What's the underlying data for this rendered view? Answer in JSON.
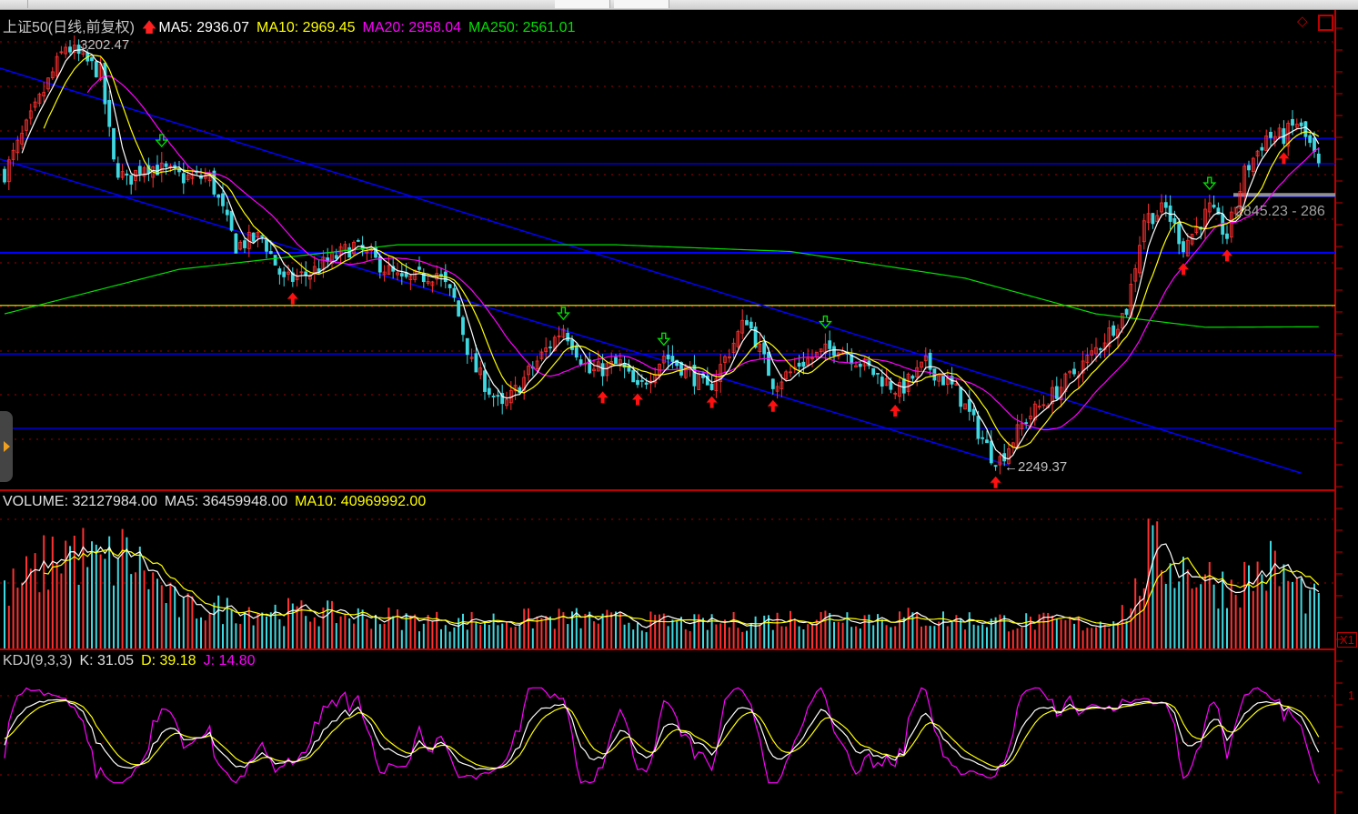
{
  "header": {
    "symbol_label": "上证50(日线,前复权)",
    "ma5": "MA5: 2936.07",
    "ma10": "MA10: 2969.45",
    "ma20": "MA20: 2958.04",
    "ma250": "MA250: 2561.01"
  },
  "volume_header": {
    "volume": "VOLUME: 32127984.00",
    "ma5": "MA5: 36459948.00",
    "ma10": "MA10: 40969992.00"
  },
  "kdj_header": {
    "name": "KDJ(9,3,3)",
    "k": "K: 31.05",
    "d": "D: 39.18",
    "j": "J: 14.80"
  },
  "annotations": {
    "high": "3202.47",
    "low": "2249.37",
    "range_label": "2845.23 - 286",
    "volume_scale": "X1",
    "kdj_axis": "1"
  },
  "colors": {
    "up": "#ff3030",
    "down": "#40d8e0",
    "ma5": "#ffffff",
    "ma10": "#ffff00",
    "ma20": "#ff00ff",
    "ma250": "#00e000",
    "hline": "#0000ff",
    "hline_yellow": "#c8c800",
    "grid": "#a00000"
  },
  "chart_data": {
    "type": "candlestick",
    "title": "上证50(日线,前复权)",
    "ylim": [
      2200,
      3240
    ],
    "key_closes": [
      [
        0,
        2906
      ],
      [
        7,
        3049
      ],
      [
        14,
        3192
      ],
      [
        22,
        3131
      ],
      [
        25,
        2927
      ],
      [
        28,
        2886
      ],
      [
        32,
        2927
      ],
      [
        41,
        2896
      ],
      [
        47,
        2896
      ],
      [
        53,
        2743
      ],
      [
        59,
        2764
      ],
      [
        64,
        2662
      ],
      [
        70,
        2682
      ],
      [
        80,
        2743
      ],
      [
        86,
        2702
      ],
      [
        91,
        2662
      ],
      [
        99,
        2682
      ],
      [
        103,
        2621
      ],
      [
        107,
        2478
      ],
      [
        114,
        2376
      ],
      [
        120,
        2458
      ],
      [
        128,
        2560
      ],
      [
        134,
        2458
      ],
      [
        141,
        2478
      ],
      [
        145,
        2417
      ],
      [
        151,
        2498
      ],
      [
        157,
        2458
      ],
      [
        161,
        2417
      ],
      [
        170,
        2580
      ],
      [
        176,
        2437
      ],
      [
        180,
        2458
      ],
      [
        182,
        2478
      ],
      [
        191,
        2519
      ],
      [
        199,
        2458
      ],
      [
        205,
        2417
      ],
      [
        211,
        2478
      ],
      [
        218,
        2417
      ],
      [
        226,
        2274
      ],
      [
        228,
        2263
      ],
      [
        234,
        2355
      ],
      [
        241,
        2417
      ],
      [
        249,
        2498
      ],
      [
        257,
        2600
      ],
      [
        261,
        2804
      ],
      [
        266,
        2825
      ],
      [
        270,
        2743
      ],
      [
        276,
        2825
      ],
      [
        280,
        2764
      ],
      [
        284,
        2906
      ],
      [
        289,
        2988
      ],
      [
        293,
        2988
      ],
      [
        296,
        3019
      ],
      [
        299,
        2968
      ],
      [
        301,
        2917
      ]
    ],
    "ma250_key": [
      [
        0,
        2590
      ],
      [
        40,
        2690
      ],
      [
        90,
        2745
      ],
      [
        140,
        2745
      ],
      [
        180,
        2730
      ],
      [
        220,
        2670
      ],
      [
        250,
        2590
      ],
      [
        275,
        2560
      ],
      [
        301,
        2561
      ]
    ],
    "horizontal_levels": [
      2984,
      2927,
      2853,
      2727,
      2609,
      2500,
      2333
    ],
    "volume_key_millions": [
      [
        0,
        40
      ],
      [
        7,
        55
      ],
      [
        14,
        75
      ],
      [
        22,
        60
      ],
      [
        28,
        70
      ],
      [
        40,
        30
      ],
      [
        60,
        28
      ],
      [
        100,
        20
      ],
      [
        130,
        22
      ],
      [
        160,
        18
      ],
      [
        190,
        24
      ],
      [
        250,
        18
      ],
      [
        258,
        30
      ],
      [
        262,
        70
      ],
      [
        270,
        60
      ],
      [
        280,
        45
      ],
      [
        290,
        60
      ],
      [
        301,
        32
      ]
    ],
    "kdj_params": [
      9,
      3,
      3
    ]
  }
}
